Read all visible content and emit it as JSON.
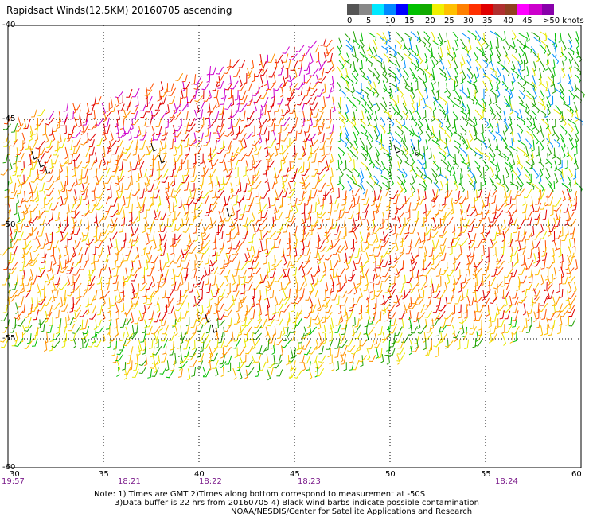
{
  "title": "Rapidsact Winds(12.5KM) 20160705 ascending",
  "legend": {
    "ticks": [
      "0",
      "5",
      "10",
      "15",
      "20",
      "25",
      "30",
      "35",
      "40",
      "45",
      ">50 knots"
    ],
    "colors": [
      "#555555",
      "#888888",
      "#00e8ff",
      "#0088ff",
      "#0000ff",
      "#00c000",
      "#11aa00",
      "#f0f000",
      "#ffc000",
      "#ff8000",
      "#ff3000",
      "#e00000",
      "#b03030",
      "#904020",
      "#ff00ff",
      "#cc00cc",
      "#8800aa"
    ]
  },
  "lat_labels": [
    "-40",
    "-45",
    "-50",
    "-55",
    "-60"
  ],
  "lon_labels": [
    "30",
    "35",
    "40",
    "45",
    "50",
    "55",
    "60"
  ],
  "time_labels": [
    "19:57",
    "18:21",
    "18:22",
    "18:23",
    "18:24"
  ],
  "notes": [
    "Note: 1) Times are GMT 2)Times along bottom correspond to measurement at -50S",
    "3)Data buffer is 22 hrs from 20160705 4) Black wind barbs indicate possible contamination",
    "NOAA/NESDIS/Center for Satellite Applications and Research"
  ]
}
